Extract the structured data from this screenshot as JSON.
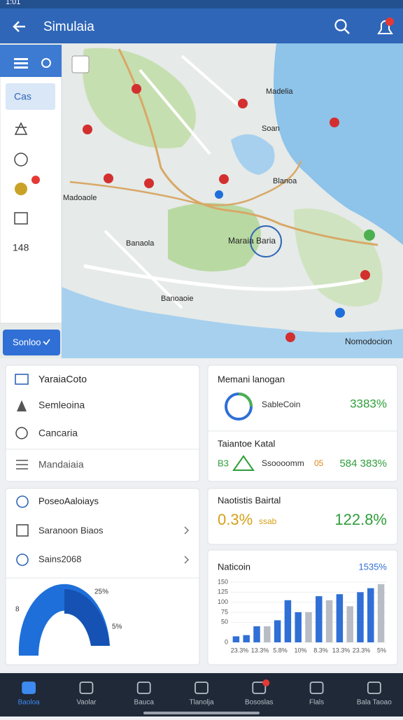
{
  "status_bar": {
    "time": "1:01"
  },
  "app_bar": {
    "title": "Simulaia"
  },
  "sidebar": {
    "selected": "Cas",
    "count": "148",
    "button": "Sonloo"
  },
  "map": {
    "labels": [
      "Madelia",
      "Soan",
      "Blanoa",
      "Madoaole",
      "Banaola",
      "Maraia Baria",
      "Banoaoie",
      "Nomodocion"
    ]
  },
  "list_card": {
    "items": [
      "YaraiaCoto",
      "Semleoina",
      "Cancaria",
      "Mandaiaia"
    ]
  },
  "stats_card": {
    "title": "Memani lanogan",
    "coin_label": "SableCoin",
    "coin_value": "3383%",
    "subtitle": "Taiantoe Katal",
    "prefix": "B3",
    "row_label": "Ssoooomm",
    "row_badge": "05",
    "row_value": "584 383%"
  },
  "options_card": {
    "items": [
      "PoseoAaloiays",
      "Saranoon Biaos",
      "Sains2068"
    ],
    "gauge_labels": [
      "8",
      "25%",
      "5%"
    ]
  },
  "total_card": {
    "title": "Naotistis Bairtal",
    "left_value": "0.3%",
    "left_unit": "ssab",
    "right_value": "122.8%"
  },
  "bar_chart": {
    "type": "bar",
    "title": "Naticoin",
    "value_label": "1535%",
    "values": [
      15,
      18,
      40,
      40,
      55,
      105,
      75,
      75,
      115,
      105,
      120,
      90,
      125,
      135,
      145
    ],
    "colors": [
      "#2f6fd6",
      "#2f6fd6",
      "#2f6fd6",
      "#b8bcc4",
      "#2f6fd6",
      "#2f6fd6",
      "#2f6fd6",
      "#b8bcc4",
      "#2f6fd6",
      "#b8bcc4",
      "#2f6fd6",
      "#b8bcc4",
      "#2f6fd6",
      "#2f6fd6",
      "#b8bcc4"
    ],
    "ylim": [
      0,
      150
    ],
    "yticks": [
      0,
      50,
      75,
      100,
      125,
      150
    ],
    "x_labels": [
      "23.3%",
      "13.3%",
      "5.8%",
      "10%",
      "8.3%",
      "13.3%",
      "23.3%",
      "5%"
    ]
  },
  "bottom_nav": {
    "items": [
      "Baoloa",
      "Vaolar",
      "Bauca",
      "Tlanolja",
      "Bososlas",
      "Flals",
      "Bala Taoao"
    ]
  }
}
